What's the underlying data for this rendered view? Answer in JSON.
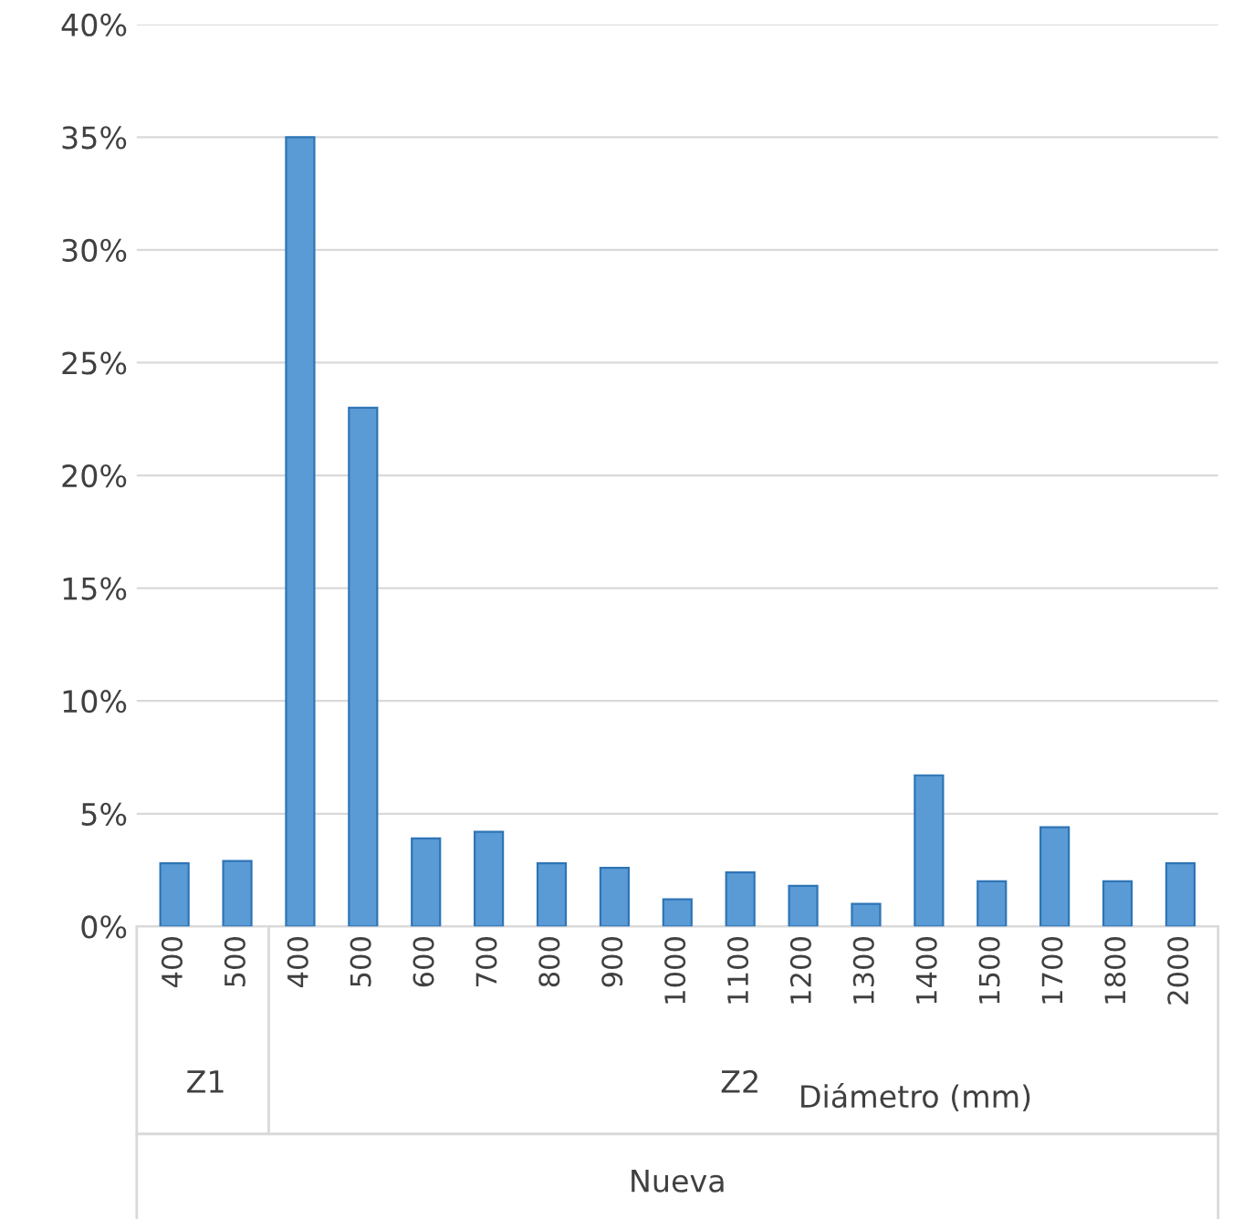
{
  "chart_data": {
    "type": "bar",
    "xlabel": "Diámetro (mm)",
    "categories": [
      "400",
      "500",
      "400",
      "500",
      "600",
      "700",
      "800",
      "900",
      "1000",
      "1100",
      "1200",
      "1300",
      "1400",
      "1500",
      "1700",
      "1800",
      "2000"
    ],
    "values": [
      2.8,
      2.9,
      35,
      23,
      3.9,
      4.2,
      2.8,
      2.6,
      1.2,
      2.4,
      1.8,
      1.0,
      6.7,
      2.0,
      4.4,
      2.0,
      2.8
    ],
    "color": "#5b9bd5",
    "ylim": [
      0,
      40
    ],
    "yticks": [
      {
        "value": 0,
        "label": "0%"
      },
      {
        "value": 5,
        "label": "5%"
      },
      {
        "value": 10,
        "label": "10%"
      },
      {
        "value": 15,
        "label": "15%"
      },
      {
        "value": 20,
        "label": "20%"
      },
      {
        "value": 25,
        "label": "25%"
      },
      {
        "value": 30,
        "label": "30%"
      },
      {
        "value": 35,
        "label": "35%"
      },
      {
        "value": 40,
        "label": "40%"
      }
    ],
    "grid": "y",
    "annotations": [
      "Z1",
      "Z2",
      "Nueva"
    ]
  }
}
